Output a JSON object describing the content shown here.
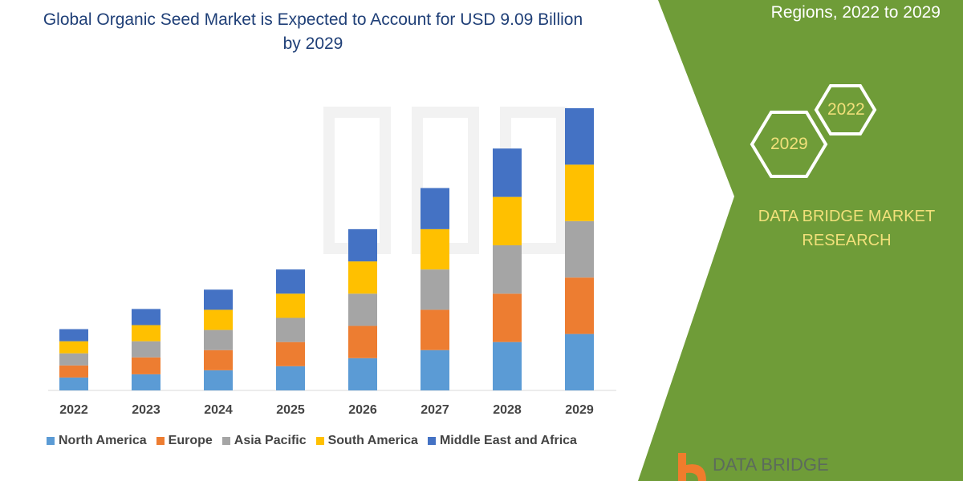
{
  "title": "Global Organic Seed Market is Expected to Account for USD 9.09 Billion by 2029",
  "side_panel": {
    "subtitle_partial": "Regions, 2022 to 2029",
    "hex_start": "2022",
    "hex_end": "2029",
    "brand": "DATA BRIDGE MARKET RESEARCH",
    "logo_text": "DATA BRIDGE",
    "panel_color": "#6f9c38",
    "text_color": "#f1e07a"
  },
  "chart_data": {
    "type": "bar",
    "stacked": true,
    "title": "Global Organic Seed Market is Expected to Account for USD 9.09 Billion by 2029",
    "xlabel": "",
    "ylabel": "",
    "y_axis_shown": false,
    "grid": false,
    "legend_position": "bottom",
    "categories": [
      "2022",
      "2023",
      "2024",
      "2025",
      "2026",
      "2027",
      "2028",
      "2029"
    ],
    "ylim": [
      0,
      350
    ],
    "series": [
      {
        "name": "North America",
        "color": "#5b9bd5",
        "values": [
          16,
          20,
          25,
          30,
          40,
          50,
          60,
          70
        ]
      },
      {
        "name": "Europe",
        "color": "#ed7d31",
        "values": [
          15,
          21,
          25,
          30,
          40,
          50,
          60,
          70
        ]
      },
      {
        "name": "Asia Pacific",
        "color": "#a5a5a5",
        "values": [
          15,
          20,
          25,
          30,
          40,
          50,
          60,
          70
        ]
      },
      {
        "name": "South America",
        "color": "#ffc000",
        "values": [
          15,
          20,
          25,
          30,
          40,
          50,
          60,
          70
        ]
      },
      {
        "name": "Middle East and Africa",
        "color": "#4472c4",
        "values": [
          15,
          20,
          25,
          30,
          40,
          51,
          60,
          70
        ]
      }
    ]
  }
}
